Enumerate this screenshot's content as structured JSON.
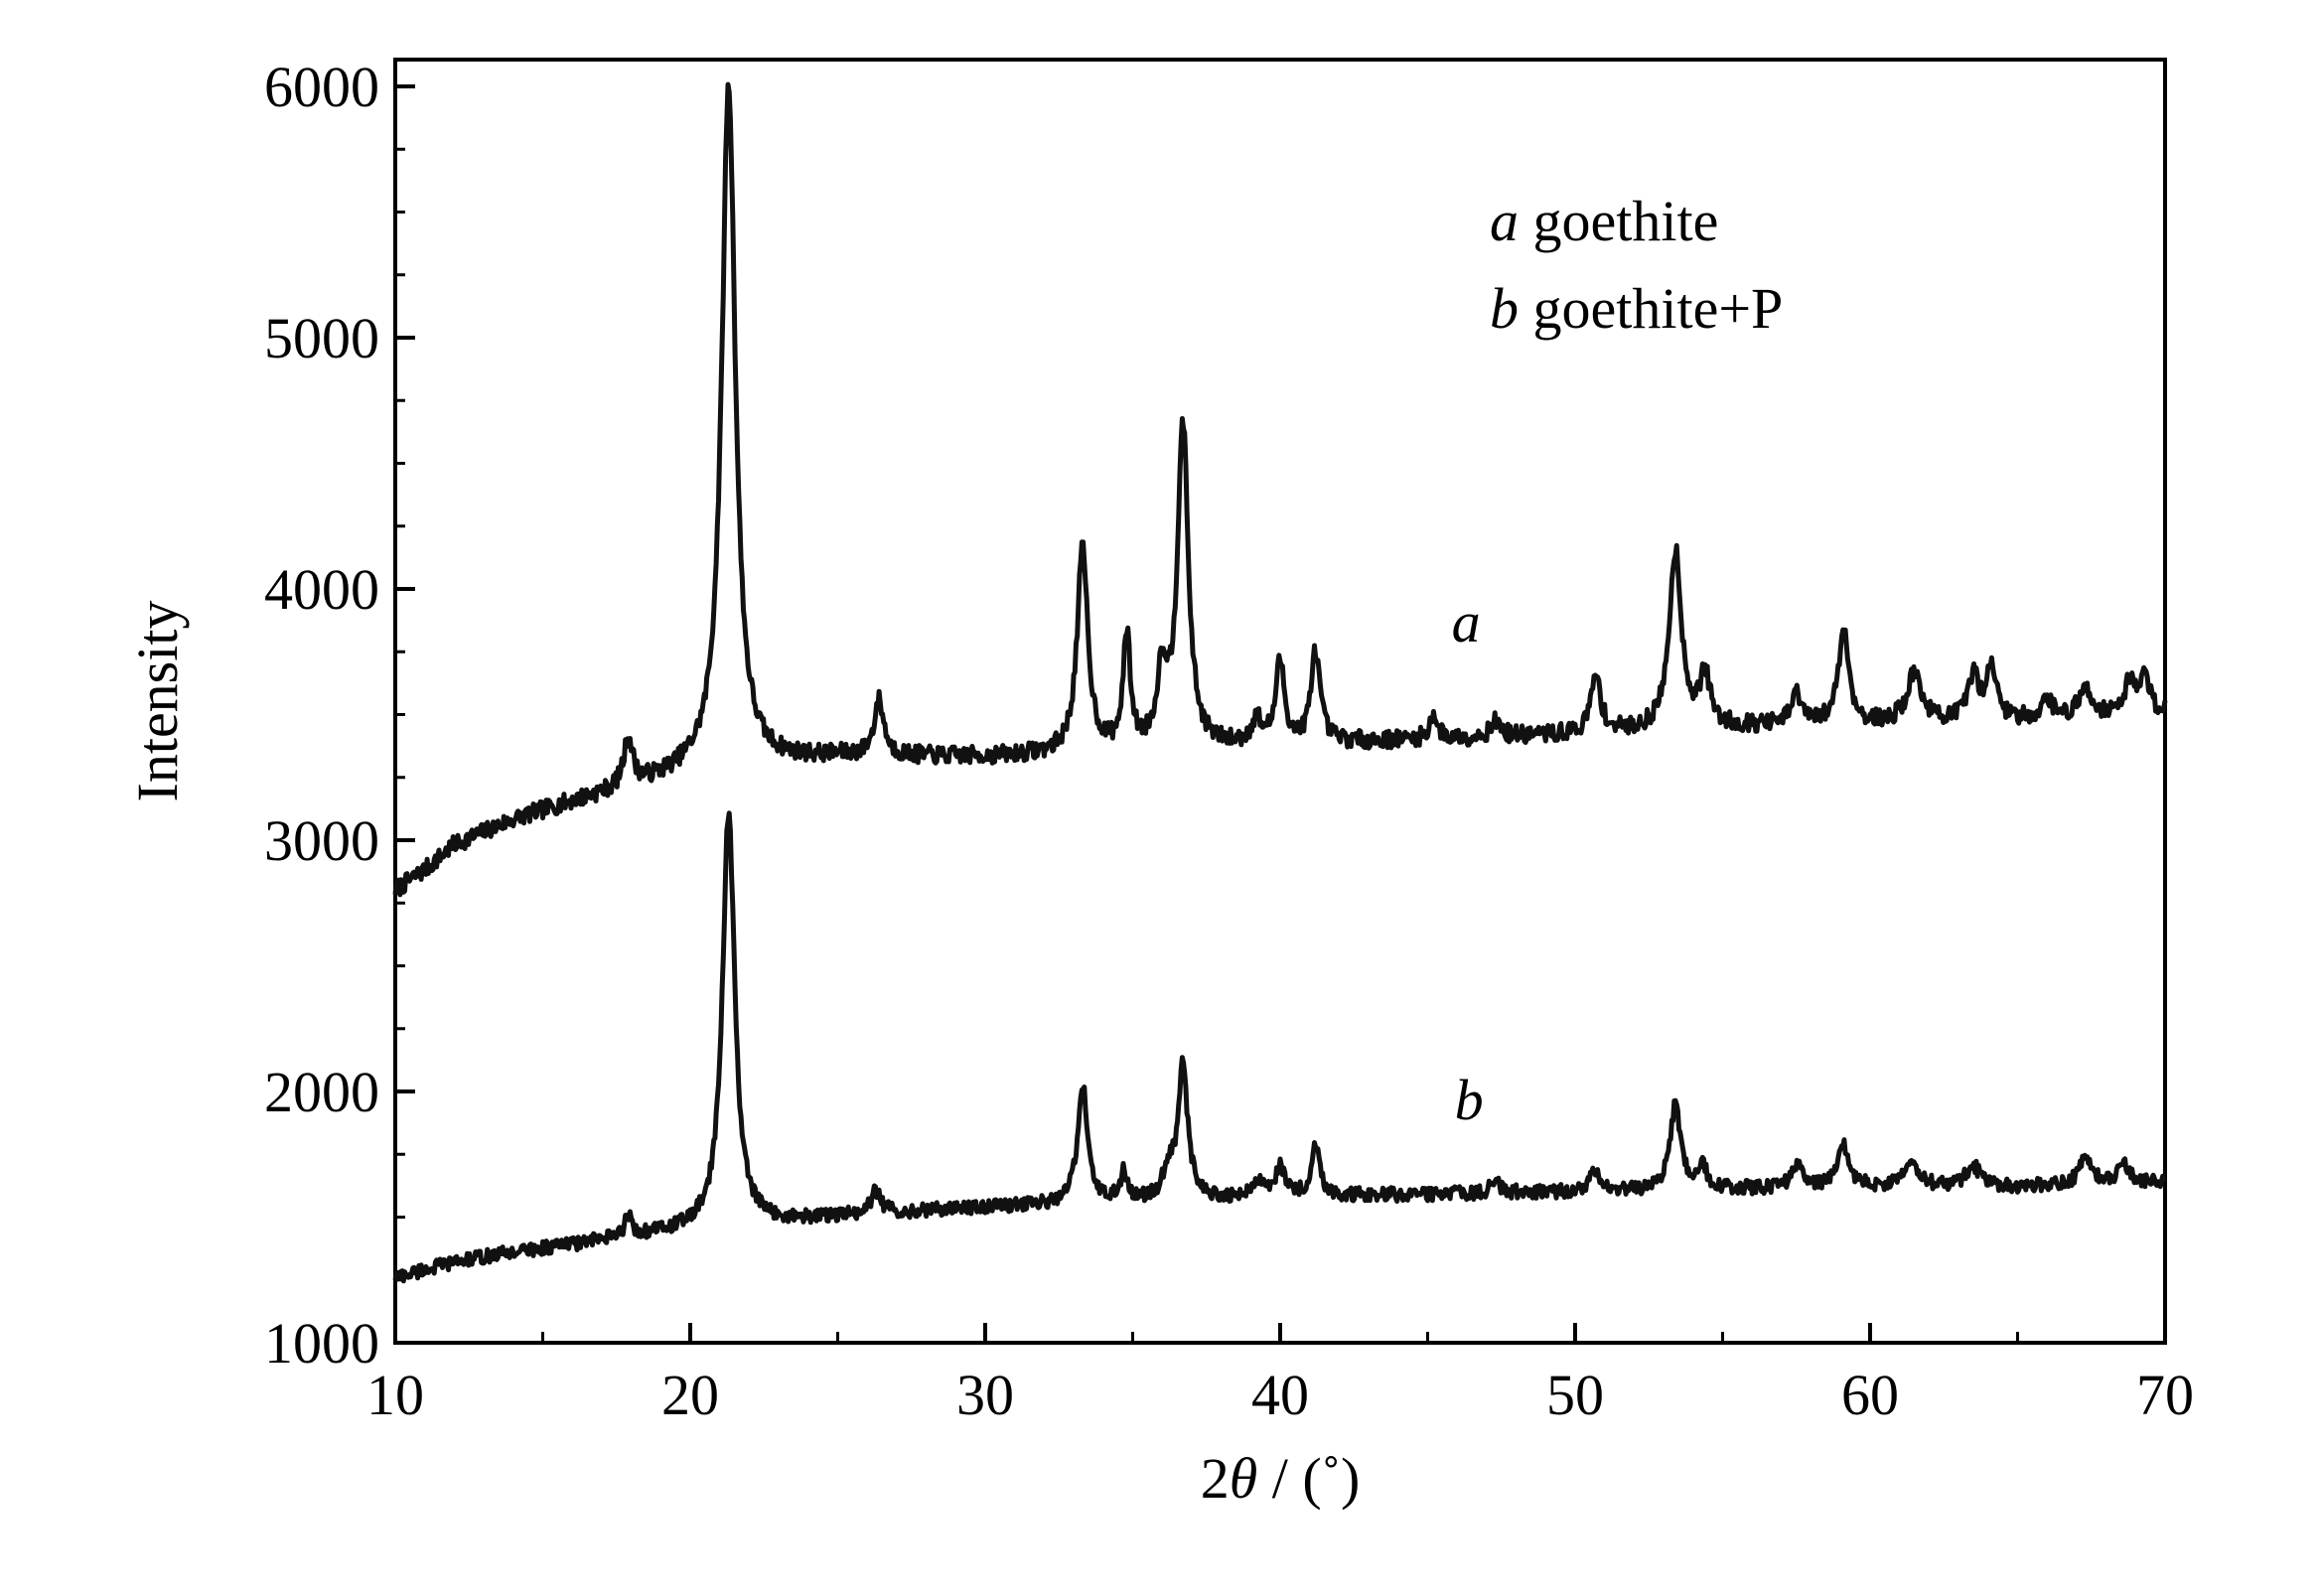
{
  "chart_data": {
    "type": "line",
    "xlabel": {
      "prefix": "2",
      "symbol": "θ",
      "suffix": " / (˚)"
    },
    "ylabel": "Intensity",
    "xlim": [
      10,
      70
    ],
    "ylim": [
      1000,
      6200
    ],
    "xticks": [
      10,
      20,
      30,
      40,
      50,
      60,
      70
    ],
    "yticks": [
      1000,
      2000,
      3000,
      4000,
      5000,
      6000
    ],
    "grid": false,
    "legend": {
      "placement": "top-right",
      "entries": [
        {
          "key": "a",
          "label": "goethite"
        },
        {
          "key": "b",
          "label": "goethite+P"
        }
      ]
    },
    "series": [
      {
        "name": "a",
        "label_at": [
          46.3,
          3790
        ],
        "baseline": [
          [
            10,
            2800
          ],
          [
            11,
            2880
          ],
          [
            12,
            2980
          ],
          [
            14,
            3080
          ],
          [
            16,
            3150
          ],
          [
            18,
            3210
          ],
          [
            20,
            3270
          ],
          [
            22,
            3300
          ],
          [
            25,
            3330
          ],
          [
            30,
            3330
          ],
          [
            35,
            3350
          ],
          [
            40,
            3380
          ],
          [
            45,
            3400
          ],
          [
            50,
            3420
          ],
          [
            55,
            3450
          ],
          [
            60,
            3460
          ],
          [
            65,
            3480
          ],
          [
            70,
            3510
          ]
        ],
        "peaks": [
          [
            17.9,
            3400,
            0.18
          ],
          [
            21.3,
            6000,
            0.28
          ],
          [
            26.4,
            3550,
            0.2
          ],
          [
            33.3,
            4150,
            0.22
          ],
          [
            34.8,
            3800,
            0.15
          ],
          [
            36.0,
            3650,
            0.2
          ],
          [
            36.7,
            4650,
            0.22
          ],
          [
            39.2,
            3470,
            0.2
          ],
          [
            40.0,
            3700,
            0.18
          ],
          [
            41.2,
            3750,
            0.18
          ],
          [
            45.2,
            3500,
            0.15
          ],
          [
            47.3,
            3470,
            0.2
          ],
          [
            50.7,
            3650,
            0.2
          ],
          [
            53.4,
            4150,
            0.25
          ],
          [
            54.4,
            3650,
            0.2
          ],
          [
            57.5,
            3580,
            0.2
          ],
          [
            59.1,
            3830,
            0.22
          ],
          [
            61.5,
            3660,
            0.3
          ],
          [
            63.5,
            3650,
            0.2
          ],
          [
            64.1,
            3700,
            0.2
          ],
          [
            66.0,
            3560,
            0.2
          ],
          [
            67.3,
            3600,
            0.25
          ],
          [
            68.8,
            3630,
            0.2
          ],
          [
            69.3,
            3650,
            0.2
          ]
        ]
      },
      {
        "name": "b",
        "label_at": [
          46.4,
          1890
        ],
        "baseline": [
          [
            10,
            1260
          ],
          [
            11,
            1290
          ],
          [
            12,
            1320
          ],
          [
            14,
            1360
          ],
          [
            16,
            1390
          ],
          [
            18,
            1420
          ],
          [
            20,
            1450
          ],
          [
            22,
            1470
          ],
          [
            25,
            1500
          ],
          [
            30,
            1540
          ],
          [
            35,
            1560
          ],
          [
            40,
            1580
          ],
          [
            45,
            1590
          ],
          [
            50,
            1600
          ],
          [
            55,
            1610
          ],
          [
            60,
            1620
          ],
          [
            65,
            1620
          ],
          [
            70,
            1640
          ]
        ],
        "peaks": [
          [
            17.9,
            1500,
            0.15
          ],
          [
            21.3,
            3110,
            0.25
          ],
          [
            26.3,
            1600,
            0.2
          ],
          [
            33.3,
            2030,
            0.2
          ],
          [
            34.7,
            1670,
            0.15
          ],
          [
            36.2,
            1680,
            0.2
          ],
          [
            36.7,
            2100,
            0.2
          ],
          [
            39.2,
            1640,
            0.2
          ],
          [
            40.0,
            1700,
            0.2
          ],
          [
            41.2,
            1780,
            0.18
          ],
          [
            47.3,
            1640,
            0.2
          ],
          [
            50.7,
            1690,
            0.2
          ],
          [
            53.4,
            1940,
            0.22
          ],
          [
            54.3,
            1700,
            0.2
          ],
          [
            57.5,
            1710,
            0.2
          ],
          [
            59.1,
            1780,
            0.22
          ],
          [
            61.4,
            1710,
            0.3
          ],
          [
            63.5,
            1700,
            0.3
          ],
          [
            67.3,
            1730,
            0.25
          ],
          [
            68.6,
            1720,
            0.2
          ]
        ]
      }
    ]
  }
}
